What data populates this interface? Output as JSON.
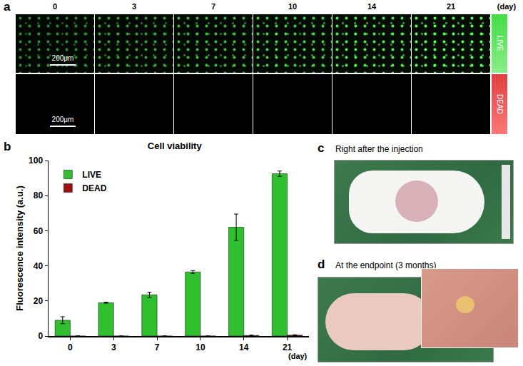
{
  "panels": {
    "a": {
      "label": "a",
      "days": [
        "0",
        "3",
        "7",
        "10",
        "14",
        "21"
      ],
      "unit": "(day)",
      "rows": [
        "LIVE",
        "DEAD"
      ],
      "scale_bar": "200μm"
    },
    "c": {
      "label": "c",
      "title": "Right after the injection"
    },
    "d": {
      "label": "d",
      "title": "At the endpoint (3 months)"
    }
  },
  "chart_data": {
    "label": "b",
    "type": "bar",
    "title": "Cell viability",
    "x_label": "(day)",
    "y_label": "Fluorescence intensity (a.u.)",
    "categories": [
      "0",
      "3",
      "7",
      "10",
      "14",
      "21"
    ],
    "series": [
      {
        "name": "LIVE",
        "color": "#2fbf2f",
        "values": [
          9,
          19,
          23.5,
          36.5,
          62,
          92.5
        ],
        "errors": [
          2,
          0.3,
          1.5,
          0.8,
          7.5,
          1.5
        ]
      },
      {
        "name": "DEAD",
        "color": "#a01010",
        "values": [
          0,
          0,
          0,
          0,
          0.3,
          0.5
        ],
        "errors": [
          0,
          0,
          0,
          0,
          0.2,
          0.2
        ]
      }
    ],
    "ylim": [
      0,
      100
    ],
    "yticks": [
      0,
      20,
      40,
      60,
      80,
      100
    ],
    "grid": false,
    "legend": "upper left"
  }
}
